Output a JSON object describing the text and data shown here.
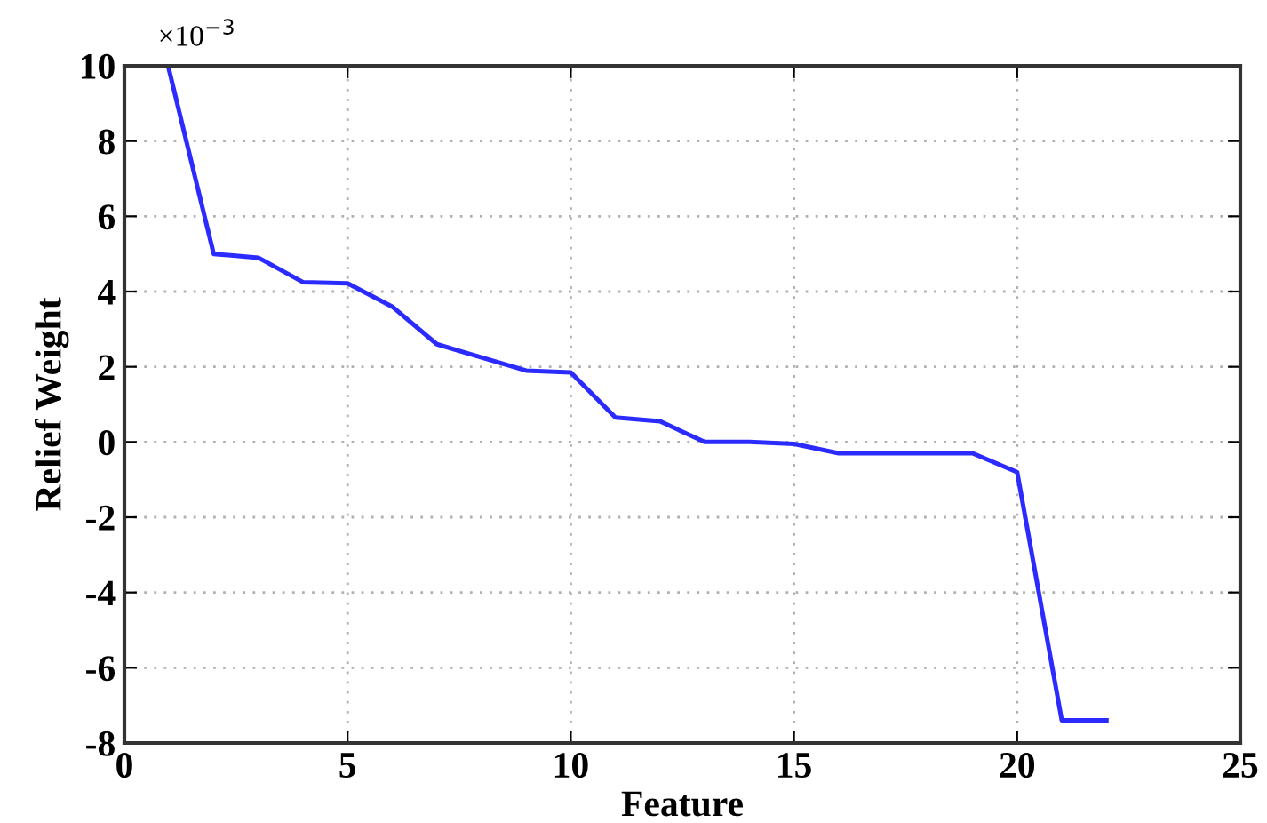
{
  "chart_data": {
    "type": "line",
    "xlabel": "Feature",
    "ylabel": "Relief Weight",
    "annotations": [
      "×10$^{−3}$"
    ],
    "x": [
      1,
      2,
      3,
      4,
      5,
      6,
      7,
      8,
      9,
      10,
      11,
      12,
      13,
      14,
      15,
      16,
      17,
      18,
      19,
      20,
      21,
      22
    ],
    "series": [
      {
        "color": "#2b2bff",
        "values": [
          9.9,
          5.0,
          4.9,
          4.25,
          4.22,
          3.6,
          2.6,
          2.25,
          1.9,
          1.85,
          0.65,
          0.55,
          0.0,
          0.0,
          -0.05,
          -0.3,
          -0.3,
          -0.3,
          -0.3,
          -0.8,
          -7.4,
          -7.4
        ]
      }
    ],
    "xlim": [
      0,
      25
    ],
    "ylim": [
      -8,
      10
    ],
    "xticks": [
      0,
      5,
      10,
      15,
      20,
      25
    ],
    "yticks": [
      -8,
      -6,
      -4,
      -2,
      0,
      2,
      4,
      6,
      8,
      10
    ],
    "grid": true,
    "marker": "none",
    "line_style": "solid",
    "legend": false
  }
}
